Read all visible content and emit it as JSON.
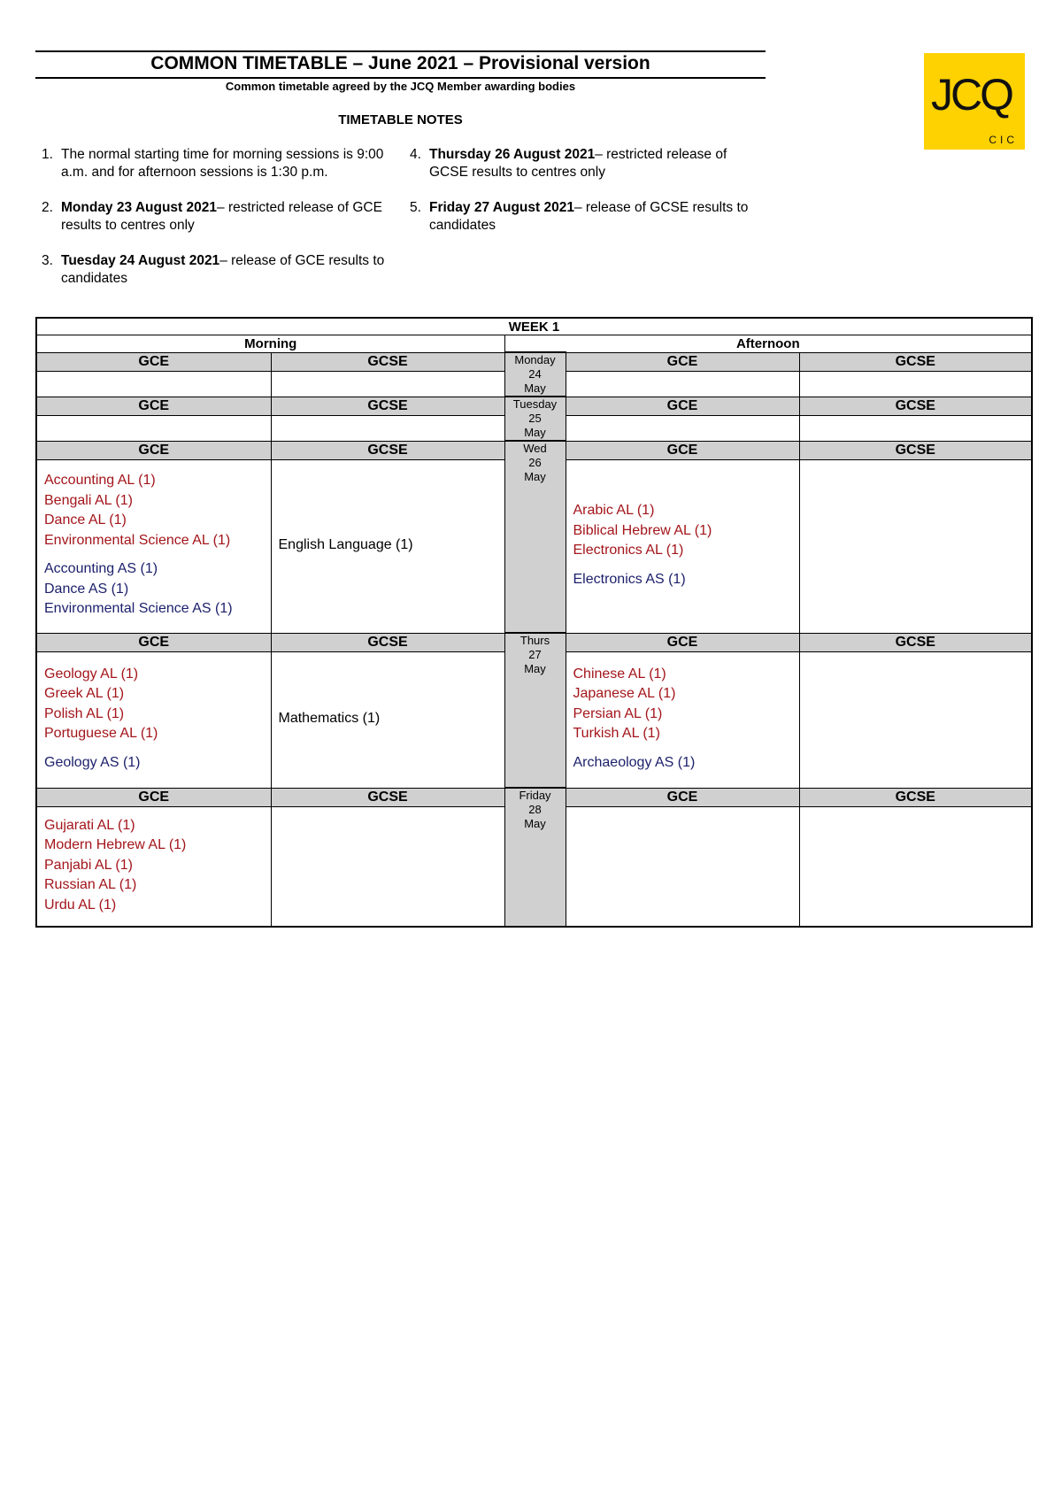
{
  "header": {
    "title": "COMMON TIMETABLE – June 2021 – Provisional version",
    "subtitle": "Common timetable agreed by the JCQ Member awarding bodies",
    "logo": "JCQ",
    "logo_sub": "CIC"
  },
  "notes": {
    "heading": "TIMETABLE NOTES",
    "items": [
      {
        "number": "1.",
        "text": "The normal starting time for morning sessions is 9:00 a.m. and for afternoon sessions is 1:30 p.m."
      },
      {
        "number": "2.",
        "bold": "Monday 23 August 2021",
        "text": "– restricted release of GCE results to centres only"
      },
      {
        "number": "3.",
        "bold": "Tuesday 24 August 2021",
        "text": "– release of GCE results to candidates"
      },
      {
        "number": "4.",
        "bold": "Thursday 26 August 2021",
        "text": "– restricted release of GCSE results to centres only"
      },
      {
        "number": "5.",
        "bold": "Friday 27 August 2021",
        "text": "– release of GCSE results to candidates"
      }
    ]
  },
  "timetable": {
    "week": "WEEK 1",
    "sessions": [
      "Morning",
      "Afternoon"
    ],
    "columns": [
      "GCE",
      "GCSE",
      "GCE",
      "GCSE"
    ],
    "days": [
      {
        "lines": [
          "Monday",
          "24",
          "May"
        ]
      },
      {
        "lines": [
          "Tuesday",
          "25",
          "May"
        ]
      },
      {
        "lines": [
          "Wed",
          "26",
          "May"
        ],
        "morning_gce": [
          {
            "color": "#a3151b",
            "items": [
              "Accounting AL (1)",
              "Bengali AL (1)",
              "Dance AL (1)",
              "Environmental Science AL (1)"
            ]
          },
          {
            "color": "#1b1f6b",
            "items": [
              "Accounting AS (1)",
              "Dance AS (1)",
              "Environmental Science AS (1)"
            ]
          }
        ],
        "morning_gcse": [
          {
            "color": "#000000",
            "items": [
              "English Language (1)"
            ]
          }
        ],
        "afternoon_gce": [
          {
            "color": "#a3151b",
            "items": [
              "Arabic AL (1)",
              "Biblical Hebrew AL (1)",
              "Electronics AL (1)"
            ]
          },
          {
            "color": "#1b1f6b",
            "items": [
              "Electronics AS (1)"
            ]
          }
        ]
      },
      {
        "lines": [
          "Thurs",
          "27",
          "May"
        ],
        "morning_gce": [
          {
            "color": "#a3151b",
            "items": [
              "Geology AL (1)",
              "Greek AL (1)",
              "Polish AL (1)",
              "Portuguese AL (1)"
            ]
          },
          {
            "color": "#1b1f6b",
            "items": [
              "Geology AS (1)"
            ]
          }
        ],
        "morning_gcse": [
          {
            "color": "#000000",
            "items": [
              "Mathematics (1)"
            ]
          }
        ],
        "afternoon_gce": [
          {
            "color": "#a3151b",
            "items": [
              "Chinese AL (1)",
              "Japanese AL (1)",
              "Persian AL (1)",
              "Turkish AL (1)"
            ]
          },
          {
            "color": "#1b1f6b",
            "items": [
              "Archaeology AS (1)"
            ]
          }
        ]
      },
      {
        "lines": [
          "Friday",
          "28",
          "May"
        ],
        "morning_gce": [
          {
            "color": "#a3151b",
            "items": [
              "Gujarati AL (1)",
              "Modern Hebrew AL (1)",
              "Panjabi AL (1)",
              "Russian AL (1)",
              "Urdu AL (1)"
            ]
          }
        ]
      }
    ]
  }
}
